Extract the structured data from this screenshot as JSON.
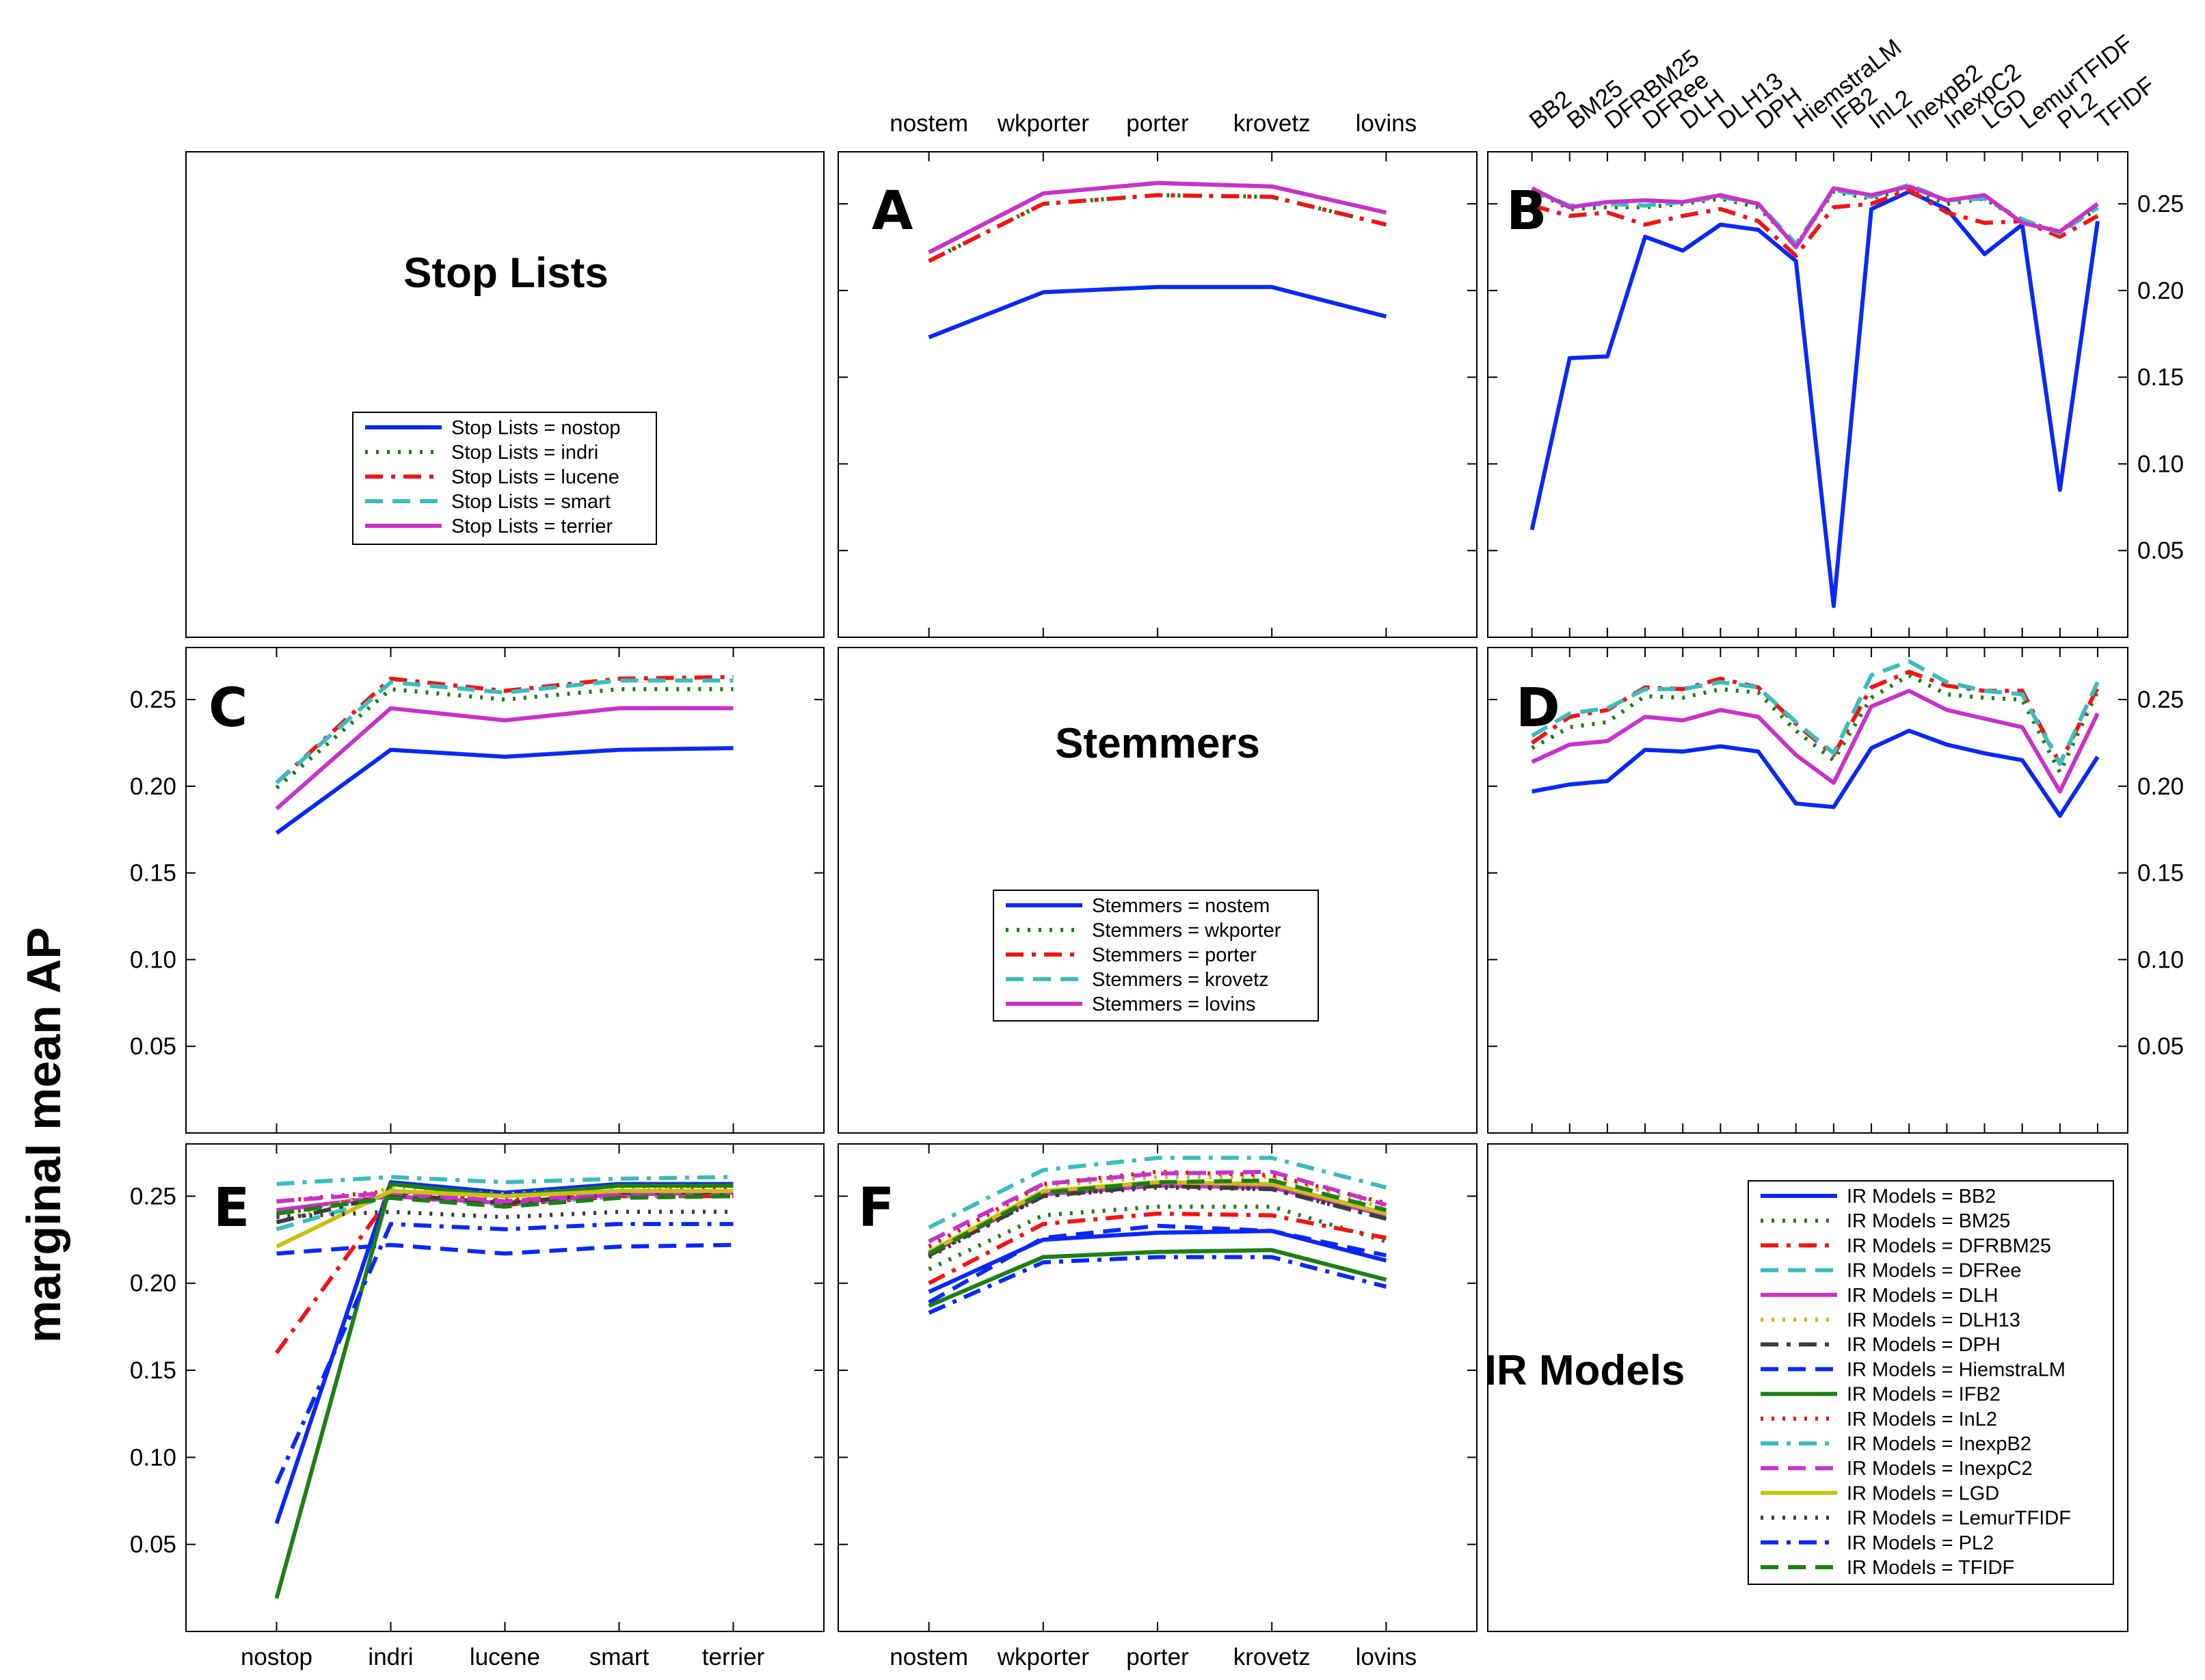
{
  "chart_data": {
    "ylabel": "marginal mean AP",
    "ylim": [
      0,
      0.28
    ],
    "yticks": [
      0.05,
      0.1,
      0.15,
      0.2,
      0.25
    ],
    "ytick_labels": [
      "0.05",
      "0.10",
      "0.15",
      "0.20",
      "0.25"
    ],
    "factors": {
      "stoplists": {
        "name": "Stop Lists",
        "levels": [
          "nostop",
          "indri",
          "lucene",
          "smart",
          "terrier"
        ],
        "colors": [
          "#0a28f5",
          "#1e7f14",
          "#f01414",
          "#3cbcbc",
          "#c832c8"
        ],
        "dashes": [
          "solid",
          "dot",
          "dashdot",
          "dash",
          "solid"
        ]
      },
      "stemmers": {
        "name": "Stemmers",
        "levels": [
          "nostem",
          "wkporter",
          "porter",
          "krovetz",
          "lovins"
        ],
        "colors": [
          "#0a28f5",
          "#1e7f14",
          "#f01414",
          "#3cbcbc",
          "#c832c8"
        ],
        "dashes": [
          "solid",
          "dot",
          "dashdot",
          "dash",
          "solid"
        ]
      },
      "irmodels": {
        "name": "IR Models",
        "levels": [
          "BB2",
          "BM25",
          "DFRBM25",
          "DFRee",
          "DLH",
          "DLH13",
          "DPH",
          "HiemstraLM",
          "IFB2",
          "InL2",
          "InexpB2",
          "InexpC2",
          "LGD",
          "LemurTFIDF",
          "PL2",
          "TFIDF"
        ],
        "colors": [
          "#0a28f5",
          "#1e7f14",
          "#f01414",
          "#3cbcbc",
          "#c832c8",
          "#c8c014",
          "#3c3c3c",
          "#0a28f5",
          "#1e7f14",
          "#f01414",
          "#3cbcbc",
          "#c832c8",
          "#c8c014",
          "#3c3c3c",
          "#0a28f5",
          "#1e7f14"
        ],
        "dashes": [
          "solid",
          "dot",
          "dashdot",
          "dash",
          "solid",
          "dot",
          "dashdot",
          "dash",
          "solid",
          "dot",
          "dashdot",
          "dash",
          "solid",
          "dot",
          "dashdot",
          "dash"
        ]
      }
    },
    "legends": {
      "stoplists": [
        "Stop Lists = nostop",
        "Stop Lists = indri",
        "Stop Lists = lucene",
        "Stop Lists = smart",
        "Stop Lists = terrier"
      ],
      "stemmers": [
        "Stemmers = nostem",
        "Stemmers = wkporter",
        "Stemmers = porter",
        "Stemmers = krovetz",
        "Stemmers = lovins"
      ],
      "irmodels": [
        "IR Models = BB2",
        "IR Models = BM25",
        "IR Models = DFRBM25",
        "IR Models = DFRee",
        "IR Models = DLH",
        "IR Models = DLH13",
        "IR Models = DPH",
        "IR Models = HiemstraLM",
        "IR Models = IFB2",
        "IR Models = InL2",
        "IR Models = InexpB2",
        "IR Models = InexpC2",
        "IR Models = LGD",
        "IR Models = LemurTFIDF",
        "IR Models = PL2",
        "IR Models = TFIDF"
      ]
    },
    "panels": [
      {
        "id": "title-stoplists",
        "type": "title",
        "text": "Stop Lists",
        "legend": "stoplists"
      },
      {
        "id": "A",
        "type": "line",
        "x_factor": "stemmers",
        "series_factor": "stoplists",
        "series": [
          [
            0.173,
            0.199,
            0.202,
            0.202,
            0.185
          ],
          [
            0.217,
            0.25,
            0.255,
            0.254,
            0.238
          ],
          [
            0.217,
            0.25,
            0.255,
            0.254,
            0.238
          ],
          [
            0.222,
            0.256,
            0.262,
            0.26,
            0.245
          ],
          [
            0.222,
            0.256,
            0.262,
            0.26,
            0.245
          ]
        ]
      },
      {
        "id": "B",
        "type": "line",
        "x_factor": "irmodels",
        "series_factor": "stoplists",
        "series": [
          [
            0.062,
            0.161,
            0.162,
            0.231,
            0.223,
            0.238,
            0.235,
            0.217,
            0.018,
            0.247,
            0.257,
            0.247,
            0.221,
            0.238,
            0.085,
            0.24
          ],
          [
            0.258,
            0.247,
            0.248,
            0.248,
            0.25,
            0.253,
            0.248,
            0.226,
            0.257,
            0.253,
            0.259,
            0.25,
            0.253,
            0.24,
            0.234,
            0.247
          ],
          [
            0.249,
            0.243,
            0.245,
            0.238,
            0.243,
            0.247,
            0.24,
            0.22,
            0.248,
            0.25,
            0.258,
            0.245,
            0.239,
            0.24,
            0.231,
            0.243
          ],
          [
            0.258,
            0.249,
            0.25,
            0.249,
            0.251,
            0.254,
            0.25,
            0.227,
            0.258,
            0.254,
            0.261,
            0.252,
            0.253,
            0.241,
            0.233,
            0.248
          ],
          [
            0.259,
            0.248,
            0.251,
            0.252,
            0.251,
            0.255,
            0.25,
            0.225,
            0.259,
            0.255,
            0.26,
            0.252,
            0.255,
            0.239,
            0.234,
            0.25
          ]
        ]
      },
      {
        "id": "C",
        "type": "line",
        "x_factor": "stoplists",
        "series_factor": "stemmers",
        "series": [
          [
            0.173,
            0.221,
            0.217,
            0.221,
            0.222
          ],
          [
            0.199,
            0.256,
            0.25,
            0.256,
            0.256
          ],
          [
            0.202,
            0.262,
            0.255,
            0.262,
            0.263
          ],
          [
            0.202,
            0.26,
            0.254,
            0.261,
            0.261
          ],
          [
            0.187,
            0.245,
            0.238,
            0.245,
            0.245
          ]
        ]
      },
      {
        "id": "title-stemmers",
        "type": "title",
        "text": "Stemmers",
        "legend": "stemmers"
      },
      {
        "id": "D",
        "type": "line",
        "x_factor": "irmodels",
        "series_factor": "stemmers",
        "series": [
          [
            0.197,
            0.201,
            0.203,
            0.221,
            0.22,
            0.223,
            0.22,
            0.19,
            0.188,
            0.222,
            0.232,
            0.224,
            0.219,
            0.215,
            0.183,
            0.217
          ],
          [
            0.222,
            0.234,
            0.237,
            0.252,
            0.251,
            0.256,
            0.254,
            0.232,
            0.215,
            0.251,
            0.264,
            0.253,
            0.251,
            0.25,
            0.208,
            0.255
          ],
          [
            0.225,
            0.24,
            0.244,
            0.257,
            0.256,
            0.262,
            0.257,
            0.236,
            0.218,
            0.257,
            0.266,
            0.258,
            0.255,
            0.255,
            0.213,
            0.257
          ],
          [
            0.229,
            0.242,
            0.245,
            0.256,
            0.256,
            0.26,
            0.257,
            0.237,
            0.219,
            0.264,
            0.272,
            0.26,
            0.255,
            0.253,
            0.213,
            0.26
          ],
          [
            0.214,
            0.224,
            0.226,
            0.24,
            0.238,
            0.244,
            0.24,
            0.218,
            0.202,
            0.246,
            0.255,
            0.244,
            0.239,
            0.234,
            0.197,
            0.242
          ]
        ]
      },
      {
        "id": "E",
        "type": "line",
        "x_factor": "stoplists",
        "series_factor": "irmodels",
        "series": [
          [
            0.062,
            0.258,
            0.252,
            0.257,
            0.257
          ],
          [
            0.239,
            0.252,
            0.247,
            0.25,
            0.25
          ],
          [
            0.16,
            0.25,
            0.245,
            0.25,
            0.25
          ],
          [
            0.231,
            0.25,
            0.245,
            0.25,
            0.252
          ],
          [
            0.242,
            0.25,
            0.246,
            0.251,
            0.252
          ],
          [
            0.235,
            0.255,
            0.251,
            0.255,
            0.256
          ],
          [
            0.235,
            0.251,
            0.246,
            0.252,
            0.252
          ],
          [
            0.217,
            0.222,
            0.217,
            0.221,
            0.222
          ],
          [
            0.019,
            0.257,
            0.25,
            0.256,
            0.256
          ],
          [
            0.247,
            0.253,
            0.248,
            0.253,
            0.254
          ],
          [
            0.257,
            0.261,
            0.258,
            0.26,
            0.261
          ],
          [
            0.247,
            0.252,
            0.247,
            0.252,
            0.253
          ],
          [
            0.221,
            0.253,
            0.25,
            0.253,
            0.253
          ],
          [
            0.238,
            0.241,
            0.238,
            0.241,
            0.241
          ],
          [
            0.085,
            0.234,
            0.231,
            0.234,
            0.234
          ],
          [
            0.24,
            0.249,
            0.244,
            0.249,
            0.25
          ]
        ]
      },
      {
        "id": "F",
        "type": "line",
        "x_factor": "stemmers",
        "series_factor": "irmodels",
        "series": [
          [
            0.195,
            0.225,
            0.229,
            0.23,
            0.213
          ],
          [
            0.208,
            0.239,
            0.244,
            0.244,
            0.224
          ],
          [
            0.2,
            0.234,
            0.24,
            0.239,
            0.226
          ],
          [
            0.218,
            0.252,
            0.258,
            0.256,
            0.24
          ],
          [
            0.217,
            0.251,
            0.256,
            0.255,
            0.239
          ],
          [
            0.221,
            0.256,
            0.261,
            0.261,
            0.243
          ],
          [
            0.216,
            0.25,
            0.256,
            0.254,
            0.237
          ],
          [
            0.189,
            0.226,
            0.233,
            0.23,
            0.216
          ],
          [
            0.187,
            0.215,
            0.218,
            0.219,
            0.202
          ],
          [
            0.221,
            0.257,
            0.264,
            0.262,
            0.246
          ],
          [
            0.232,
            0.265,
            0.272,
            0.272,
            0.255
          ],
          [
            0.224,
            0.257,
            0.263,
            0.264,
            0.245
          ],
          [
            0.218,
            0.253,
            0.258,
            0.257,
            0.24
          ],
          [
            0.215,
            0.25,
            0.255,
            0.254,
            0.237
          ],
          [
            0.183,
            0.212,
            0.215,
            0.215,
            0.198
          ],
          [
            0.217,
            0.252,
            0.258,
            0.259,
            0.242
          ]
        ]
      },
      {
        "id": "title-irmodels",
        "type": "title",
        "text": "IR Models",
        "legend": "irmodels"
      }
    ]
  }
}
